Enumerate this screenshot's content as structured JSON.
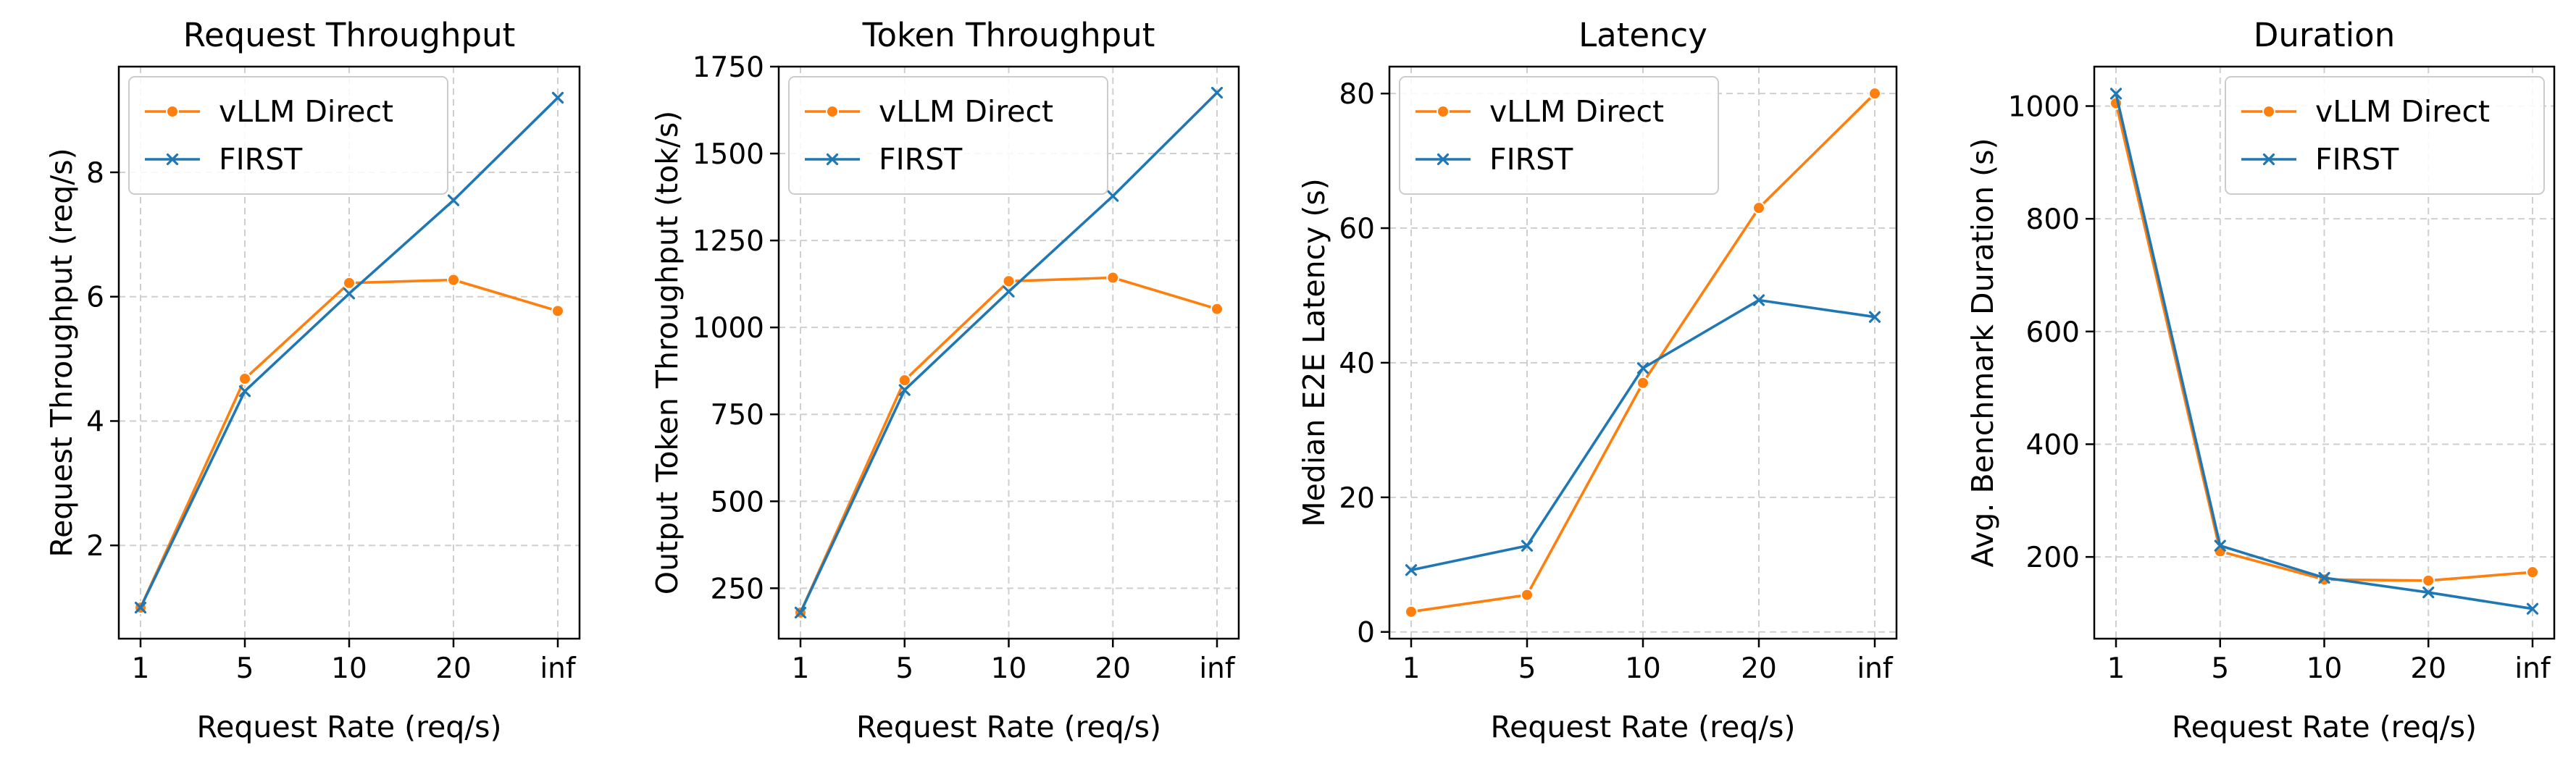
{
  "figure": {
    "colors": {
      "vllm": "#ff7f0e",
      "first": "#1f77b4",
      "grid": "#cfcfcf"
    }
  },
  "chart_data": [
    {
      "type": "line",
      "title": "Request Throughput",
      "xlabel": "Request Rate (req/s)",
      "ylabel": "Request Throughput (req/s)",
      "categories": [
        "1",
        "5",
        "10",
        "20",
        "inf"
      ],
      "ylim": [
        0.5,
        9.7
      ],
      "yticks": [
        2,
        4,
        6,
        8
      ],
      "ytick_labels": [
        "2",
        "4",
        "6",
        "8"
      ],
      "grid": true,
      "legend": "upper-left",
      "series": [
        {
          "name": "vLLM Direct",
          "marker": "circle",
          "values": [
            1.0,
            4.68,
            6.22,
            6.27,
            5.77
          ]
        },
        {
          "name": "FIRST",
          "marker": "x",
          "values": [
            1.0,
            4.48,
            6.05,
            7.55,
            9.2
          ]
        }
      ]
    },
    {
      "type": "line",
      "title": "Token Throughput",
      "xlabel": "Request Rate (req/s)",
      "ylabel": "Output Token Throughput (tok/s)",
      "categories": [
        "1",
        "5",
        "10",
        "20",
        "inf"
      ],
      "ylim": [
        105,
        1750
      ],
      "yticks": [
        250,
        500,
        750,
        1000,
        1250,
        1500,
        1750
      ],
      "ytick_labels": [
        "250",
        "500",
        "750",
        "1000",
        "1250",
        "1500",
        "1750"
      ],
      "grid": true,
      "legend": "upper-left",
      "series": [
        {
          "name": "vLLM Direct",
          "marker": "circle",
          "values": [
            180,
            848,
            1133,
            1143,
            1053
          ]
        },
        {
          "name": "FIRST",
          "marker": "x",
          "values": [
            180,
            820,
            1103,
            1378,
            1675
          ]
        }
      ]
    },
    {
      "type": "line",
      "title": "Latency",
      "xlabel": "Request Rate (req/s)",
      "ylabel": "Median E2E Latency (s)",
      "categories": [
        "1",
        "5",
        "10",
        "20",
        "inf"
      ],
      "ylim": [
        -1,
        84
      ],
      "yticks": [
        0,
        20,
        40,
        60,
        80
      ],
      "ytick_labels": [
        "0",
        "20",
        "40",
        "60",
        "80"
      ],
      "grid": true,
      "legend": "upper-left",
      "series": [
        {
          "name": "vLLM Direct",
          "marker": "circle",
          "values": [
            3.0,
            5.5,
            37.0,
            63.0,
            80.0
          ]
        },
        {
          "name": "FIRST",
          "marker": "x",
          "values": [
            9.2,
            12.8,
            39.2,
            49.3,
            46.8
          ]
        }
      ]
    },
    {
      "type": "line",
      "title": "Duration",
      "xlabel": "Request Rate (req/s)",
      "ylabel": "Avg. Benchmark Duration (s)",
      "categories": [
        "1",
        "5",
        "10",
        "20",
        "inf"
      ],
      "ylim": [
        55,
        1070
      ],
      "yticks": [
        200,
        400,
        600,
        800,
        1000
      ],
      "ytick_labels": [
        "200",
        "400",
        "600",
        "800",
        "1000"
      ],
      "grid": true,
      "legend": "upper-right",
      "series": [
        {
          "name": "vLLM Direct",
          "marker": "circle",
          "values": [
            1005,
            210,
            160,
            158,
            173
          ]
        },
        {
          "name": "FIRST",
          "marker": "x",
          "values": [
            1022,
            220,
            163,
            137,
            108
          ]
        }
      ]
    }
  ]
}
